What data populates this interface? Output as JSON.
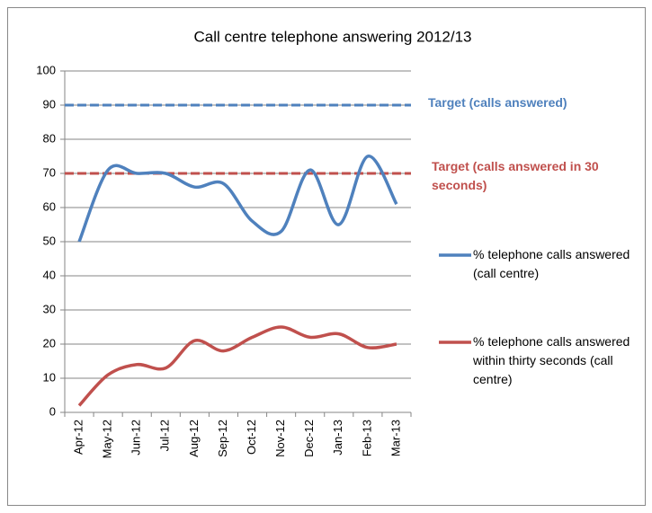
{
  "chart_data": {
    "type": "line",
    "title": "Call centre telephone answering 2012/13",
    "categories": [
      "Apr-12",
      "May-12",
      "Jun-12",
      "Jul-12",
      "Aug-12",
      "Sep-12",
      "Oct-12",
      "Nov-12",
      "Dec-12",
      "Jan-13",
      "Feb-13",
      "Mar-13"
    ],
    "series": [
      {
        "name": "% telephone calls answered (call centre)",
        "color": "#4f81bd",
        "values": [
          50,
          71,
          70,
          70,
          66,
          67,
          56,
          53,
          71,
          55,
          75,
          61
        ]
      },
      {
        "name": "% telephone calls answered within thirty seconds (call centre)",
        "color": "#c0504d",
        "values": [
          2,
          11,
          14,
          13,
          21,
          18,
          22,
          25,
          22,
          23,
          19,
          20
        ]
      }
    ],
    "reference_lines": [
      {
        "label": "Target (calls answered)",
        "value": 90,
        "color": "#4f81bd"
      },
      {
        "label": "Target (calls answered in 30 seconds)",
        "value": 70,
        "color": "#c0504d"
      }
    ],
    "ylim": [
      0,
      100
    ],
    "yticks": [
      0,
      10,
      20,
      30,
      40,
      50,
      60,
      70,
      80,
      90,
      100
    ],
    "grid": true,
    "smooth": true,
    "legend": "right"
  }
}
